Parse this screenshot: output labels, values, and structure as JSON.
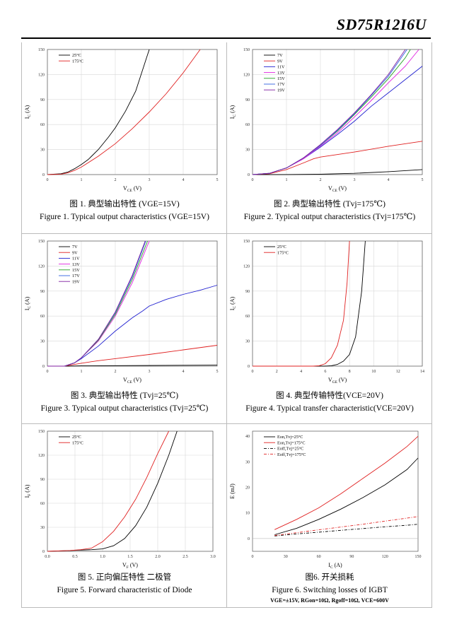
{
  "header": {
    "title": "SD75R12I6U"
  },
  "figures": [
    {
      "caption_cn": "图 1. 典型输出特性 (VGE=15V)",
      "caption_en": "Figure 1. Typical output characteristics (VGE=15V)",
      "chart_data": {
        "type": "line",
        "xlabel": "VCE (V)",
        "ylabel": "IC (A)",
        "xlim": [
          0,
          5
        ],
        "ylim": [
          0,
          150
        ],
        "xticks": [
          0,
          1,
          2,
          3,
          4,
          5
        ],
        "yticks": [
          0,
          30,
          60,
          90,
          120,
          150
        ],
        "grid": true,
        "legend": "top-left",
        "series": [
          {
            "name": "25°C",
            "color": "#000000",
            "x": [
              0,
              0.4,
              0.6,
              0.8,
              1.0,
              1.2,
              1.5,
              1.8,
              2.0,
              2.3,
              2.6,
              3.0
            ],
            "y": [
              0,
              1,
              3,
              7,
              12,
              18,
              30,
              45,
              56,
              76,
              100,
              150
            ]
          },
          {
            "name": "175°C",
            "color": "#e02020",
            "x": [
              0,
              0.4,
              0.6,
              0.8,
              1.0,
              1.5,
              2.0,
              2.5,
              3.0,
              3.5,
              4.0,
              4.5
            ],
            "y": [
              0,
              0.5,
              2,
              5,
              9,
              22,
              37,
              55,
              75,
              97,
              122,
              150
            ]
          }
        ]
      }
    },
    {
      "caption_cn": "图 2. 典型输出特性 (Tvj=175℃)",
      "caption_en": "Figure 2. Typical output characteristics (Tvj=175℃)",
      "chart_data": {
        "type": "line",
        "xlabel": "VCE (V)",
        "ylabel": "IC (A)",
        "xlim": [
          0,
          5
        ],
        "ylim": [
          0,
          150
        ],
        "xticks": [
          0,
          1,
          2,
          3,
          4,
          5
        ],
        "yticks": [
          0,
          30,
          60,
          90,
          120,
          150
        ],
        "grid": true,
        "legend": "top-left",
        "series": [
          {
            "name": "7V",
            "color": "#000000",
            "x": [
              0,
              1,
              2,
              3,
              4,
              5
            ],
            "y": [
              0,
              0,
              0.5,
              1.5,
              3.5,
              6
            ]
          },
          {
            "name": "9V",
            "color": "#e02020",
            "x": [
              0,
              0.5,
              1.0,
              1.5,
              1.8,
              2.0,
              3.0,
              4.0,
              5.0
            ],
            "y": [
              0,
              1,
              6,
              14,
              19,
              21,
              27,
              34,
              40
            ]
          },
          {
            "name": "11V",
            "color": "#2020d0",
            "x": [
              0,
              0.5,
              1.0,
              1.5,
              2.0,
              2.5,
              3.0,
              3.5,
              4.0,
              4.5,
              5.0
            ],
            "y": [
              0,
              1.5,
              8,
              19,
              33,
              48,
              64,
              82,
              98,
              114,
              130
            ]
          },
          {
            "name": "13V",
            "color": "#e020e0",
            "x": [
              0,
              0.5,
              1.0,
              1.5,
              2.0,
              2.5,
              3.0,
              3.5,
              4.0,
              4.5,
              4.9
            ],
            "y": [
              0,
              1.5,
              8,
              19,
              34,
              50,
              69,
              89,
              110,
              130,
              150
            ]
          },
          {
            "name": "15V",
            "color": "#20a020",
            "x": [
              0,
              0.5,
              1.0,
              1.5,
              2.0,
              2.5,
              3.0,
              3.5,
              4.0,
              4.5,
              4.65
            ],
            "y": [
              0,
              1.5,
              8,
              20,
              35,
              52,
              72,
              93,
              115,
              140,
              150
            ]
          },
          {
            "name": "17V",
            "color": "#3060e0",
            "x": [
              0,
              0.5,
              1.0,
              1.5,
              2.0,
              2.5,
              3.0,
              3.5,
              4.0,
              4.55
            ],
            "y": [
              0,
              1.5,
              8,
              20,
              35,
              53,
              73,
              95,
              118,
              150
            ]
          },
          {
            "name": "19V",
            "color": "#8020a0",
            "x": [
              0,
              0.5,
              1.0,
              1.5,
              2.0,
              2.5,
              3.0,
              3.5,
              4.0,
              4.5
            ],
            "y": [
              0,
              1.5,
              8,
              20,
              36,
              54,
              74,
              96,
              120,
              150
            ]
          }
        ]
      }
    },
    {
      "caption_cn": "图 3. 典型输出特性 (Tvj=25℃)",
      "caption_en": "Figure 3. Typical output characteristics (Tvj=25℃)",
      "chart_data": {
        "type": "line",
        "xlabel": "VCE (V)",
        "ylabel": "IC (A)",
        "xlim": [
          0,
          5
        ],
        "ylim": [
          0,
          150
        ],
        "xticks": [
          0,
          1,
          2,
          3,
          4,
          5
        ],
        "yticks": [
          0,
          30,
          60,
          90,
          120,
          150
        ],
        "grid": true,
        "legend": "top-left",
        "series": [
          {
            "name": "7V",
            "color": "#000000",
            "x": [
              0,
              0.6,
              1.0,
              2.0,
              3.0,
              4.0,
              5.0
            ],
            "y": [
              0,
              0,
              0.3,
              0.6,
              0.8,
              1,
              1.2
            ]
          },
          {
            "name": "9V",
            "color": "#e02020",
            "x": [
              0,
              0.5,
              0.8,
              1.0,
              1.5,
              2.0,
              3.0,
              4.0,
              5.0
            ],
            "y": [
              0,
              0,
              2,
              3.5,
              6.5,
              9,
              14,
              19.5,
              25
            ]
          },
          {
            "name": "11V",
            "color": "#2020d0",
            "x": [
              0,
              0.5,
              0.8,
              1.0,
              1.5,
              2.0,
              2.5,
              2.8,
              3.0,
              3.5,
              4.0,
              4.5,
              5.0
            ],
            "y": [
              0,
              0,
              4,
              9,
              24,
              42,
              58,
              66,
              72,
              80,
              86,
              91,
              97
            ]
          },
          {
            "name": "13V",
            "color": "#e020e0",
            "x": [
              0,
              0.5,
              0.8,
              1.0,
              1.5,
              2.0,
              2.5,
              3.0
            ],
            "y": [
              0,
              0,
              4,
              10,
              30,
              60,
              100,
              150
            ]
          },
          {
            "name": "15V",
            "color": "#20a020",
            "x": [
              0,
              0.5,
              0.8,
              1.0,
              1.5,
              2.0,
              2.5,
              2.95
            ],
            "y": [
              0,
              0,
              4,
              10,
              31,
              62,
              104,
              150
            ]
          },
          {
            "name": "17V",
            "color": "#3060e0",
            "x": [
              0,
              0.5,
              0.8,
              1.0,
              1.5,
              2.0,
              2.5,
              2.9
            ],
            "y": [
              0,
              0,
              4,
              10,
              32,
              64,
              107,
              150
            ]
          },
          {
            "name": "19V",
            "color": "#8020a0",
            "x": [
              0,
              0.5,
              0.8,
              1.0,
              1.5,
              2.0,
              2.5,
              2.88
            ],
            "y": [
              0,
              0,
              4,
              10,
              32,
              65,
              109,
              150
            ]
          }
        ]
      }
    },
    {
      "caption_cn": "图 4. 典型传输特性(VCE=20V)",
      "caption_en": "Figure 4. Typical transfer characteristic(VCE=20V)",
      "chart_data": {
        "type": "line",
        "xlabel": "VGE (V)",
        "ylabel": "IC (A)",
        "xlim": [
          0,
          14
        ],
        "ylim": [
          0,
          150
        ],
        "xticks": [
          0,
          2,
          4,
          6,
          8,
          10,
          12,
          14
        ],
        "yticks": [
          0,
          30,
          60,
          90,
          120,
          150
        ],
        "grid": true,
        "legend": "top-left",
        "series": [
          {
            "name": "25°C",
            "color": "#000000",
            "x": [
              0,
              6.0,
              6.5,
              7.0,
              7.5,
              8.0,
              8.5,
              9.0,
              9.3
            ],
            "y": [
              0,
              0,
              0.5,
              2,
              6,
              14,
              35,
              90,
              150
            ]
          },
          {
            "name": "175°C",
            "color": "#e02020",
            "x": [
              0,
              5.0,
              5.5,
              6.0,
              6.5,
              7.0,
              7.5,
              7.8,
              8.0
            ],
            "y": [
              0,
              0,
              0.5,
              3,
              10,
              25,
              55,
              100,
              150
            ]
          }
        ]
      }
    },
    {
      "caption_cn": "图 5. 正向偏压特性 二极管",
      "caption_en": "Figure 5. Forward characteristic of Diode",
      "chart_data": {
        "type": "line",
        "xlabel": "VF (V)",
        "ylabel": "IF (A)",
        "xlim": [
          0,
          3.0
        ],
        "ylim": [
          0,
          150
        ],
        "xticks": [
          "0.0",
          "0.5",
          "1.0",
          "1.5",
          "2.0",
          "2.5",
          "3.0"
        ],
        "yticks": [
          0,
          30,
          60,
          90,
          120,
          150
        ],
        "grid": true,
        "legend": "top-left",
        "series": [
          {
            "name": "25°C",
            "color": "#000000",
            "x": [
              0,
              0.4,
              0.8,
              1.0,
              1.2,
              1.4,
              1.6,
              1.8,
              2.0,
              2.2,
              2.35
            ],
            "y": [
              0,
              1,
              2,
              3,
              7,
              16,
              32,
              55,
              85,
              120,
              150
            ]
          },
          {
            "name": "175°C",
            "color": "#e02020",
            "x": [
              0,
              0.4,
              0.6,
              0.8,
              1.0,
              1.2,
              1.4,
              1.6,
              1.8,
              2.0,
              2.2
            ],
            "y": [
              0,
              1,
              2,
              4,
              12,
              25,
              43,
              65,
              92,
              122,
              150
            ]
          }
        ]
      }
    },
    {
      "caption_cn": "图6. 开关损耗",
      "caption_en": "Figure 6. Switching losses of IGBT",
      "caption_sub": "VGE=±15V, RGon=10Ω, Rgoff=10Ω, VCE=600V",
      "chart_data": {
        "type": "line",
        "xlabel": "IC (A)",
        "ylabel": "E (mJ)",
        "xlim": [
          0,
          150
        ],
        "ylim": [
          -5,
          42
        ],
        "xticks": [
          0,
          30,
          60,
          90,
          120,
          150
        ],
        "yticks": [
          0,
          10,
          20,
          30,
          40
        ],
        "grid": false,
        "legend": "top-left",
        "series": [
          {
            "name": "Eon,Tvj=25°C",
            "color": "#000000",
            "dash": "solid",
            "x": [
              20,
              40,
              60,
              80,
              100,
              120,
              140,
              150
            ],
            "y": [
              1.5,
              4,
              7.5,
              11.5,
              16,
              21,
              27,
              31.5
            ]
          },
          {
            "name": "Eon,Tvj=175°C",
            "color": "#e02020",
            "dash": "solid",
            "x": [
              20,
              40,
              60,
              80,
              100,
              120,
              140,
              150
            ],
            "y": [
              3.5,
              7.5,
              12,
              17.5,
              23.5,
              29.5,
              36,
              40
            ]
          },
          {
            "name": "Eoff,Tvj=25°C",
            "color": "#000000",
            "dash": "dashdot",
            "x": [
              20,
              40,
              60,
              80,
              100,
              120,
              140,
              150
            ],
            "y": [
              1,
              1.8,
              2.5,
              3.2,
              3.9,
              4.6,
              5.2,
              5.6
            ]
          },
          {
            "name": "Eoff,Tvj=175°C",
            "color": "#e02020",
            "dash": "dashdot",
            "x": [
              20,
              40,
              60,
              80,
              100,
              120,
              140,
              150
            ],
            "y": [
              1.2,
              2.3,
              3.4,
              4.5,
              5.6,
              6.8,
              8,
              8.6
            ]
          }
        ]
      }
    }
  ]
}
